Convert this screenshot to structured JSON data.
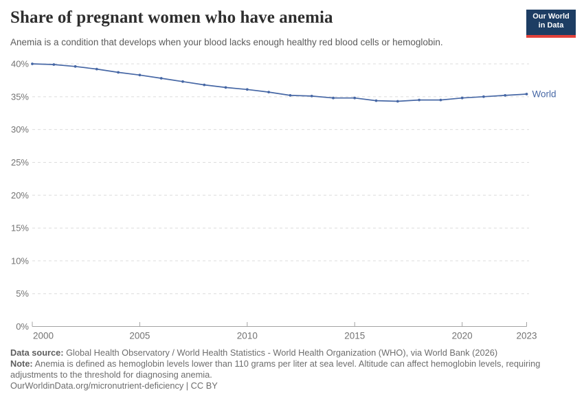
{
  "header": {
    "title": "Share of pregnant women who have anemia",
    "subtitle": "Anemia is a condition that develops when your blood lacks enough healthy red blood cells or hemoglobin.",
    "logo": {
      "line1": "Our World",
      "line2": "in Data"
    }
  },
  "chart_data": {
    "type": "line",
    "title": "Share of pregnant women who have anemia",
    "xlabel": "",
    "ylabel": "",
    "xlim": [
      2000,
      2023
    ],
    "ylim": [
      0,
      40
    ],
    "grid": "horizontal-dashed",
    "legend_position": "end-of-line-label",
    "x_ticks": [
      2000,
      2005,
      2010,
      2015,
      2020,
      2023
    ],
    "y_ticks": [
      0,
      5,
      10,
      15,
      20,
      25,
      30,
      35,
      40
    ],
    "y_tick_suffix": "%",
    "series": [
      {
        "name": "World",
        "color": "#4667a5",
        "x": [
          2000,
          2001,
          2002,
          2003,
          2004,
          2005,
          2006,
          2007,
          2008,
          2009,
          2010,
          2011,
          2012,
          2013,
          2014,
          2015,
          2016,
          2017,
          2018,
          2019,
          2020,
          2021,
          2022,
          2023
        ],
        "values": [
          40.0,
          39.9,
          39.6,
          39.2,
          38.7,
          38.3,
          37.8,
          37.3,
          36.8,
          36.4,
          36.1,
          35.7,
          35.2,
          35.1,
          34.8,
          34.8,
          34.4,
          34.3,
          34.5,
          34.5,
          34.8,
          35.0,
          35.2,
          35.4
        ]
      }
    ]
  },
  "footer": {
    "data_source_label": "Data source:",
    "data_source": "Global Health Observatory / World Health Statistics - World Health Organization (WHO), via World Bank (2026)",
    "note_label": "Note:",
    "note": "Anemia is defined as hemoglobin levels lower than 110 grams per liter at sea level. Altitude can affect hemoglobin levels, requiring adjustments to the threshold for diagnosing anemia.",
    "url": "OurWorldinData.org/micronutrient-deficiency | CC BY"
  },
  "colors": {
    "accent_line": "#4667a5",
    "logo_navy": "#1d3d63",
    "logo_red": "#e2413b",
    "grid": "#dcdcdc",
    "axis": "#a3a3a3",
    "axis_text": "#737373",
    "title_text": "#2e2e2e",
    "subtitle_text": "#5b5b5b",
    "footer_text": "#6d6d6d"
  }
}
